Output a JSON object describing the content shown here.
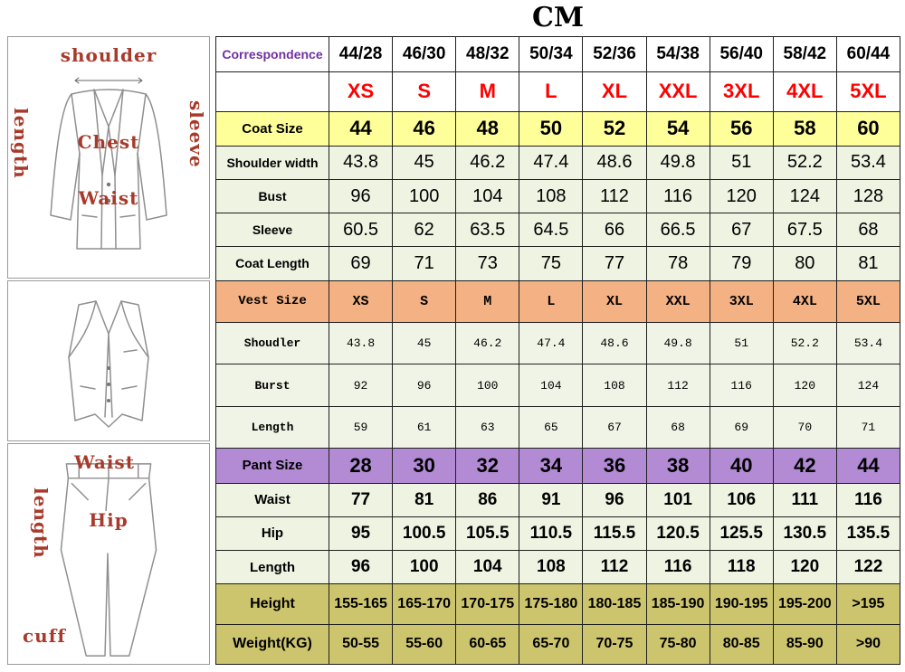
{
  "page_title": "CM",
  "colors": {
    "coat_size_row": "#ffff99",
    "vest_size_row": "#f4b183",
    "pant_size_row": "#b28bd4",
    "range_rows": "#cdc56e",
    "data_rows": "#eef3e2",
    "sizes_text": "#fe0000",
    "correspondence_text": "#7030a0",
    "sketch_label_text": "#a83a2b"
  },
  "diagrams": {
    "jacket": {
      "shoulder": "shoulder",
      "length": "length",
      "sleeve": "sleeve",
      "chest": "Chest",
      "waist": "Waist"
    },
    "pants": {
      "waist": "Waist",
      "length": "length",
      "hip": "Hip",
      "cuff": "cuff"
    }
  },
  "chart_data": {
    "type": "table",
    "title": "CM",
    "rows": [
      {
        "label": "Correspondence",
        "style": "header",
        "values": [
          "44/28",
          "46/30",
          "48/32",
          "50/34",
          "52/36",
          "54/38",
          "56/40",
          "58/42",
          "60/44"
        ]
      },
      {
        "label": "",
        "style": "sizes",
        "values": [
          "XS",
          "S",
          "M",
          "L",
          "XL",
          "XXL",
          "3XL",
          "4XL",
          "5XL"
        ]
      },
      {
        "label": "Coat Size",
        "style": "coatsize",
        "values": [
          "44",
          "46",
          "48",
          "50",
          "52",
          "54",
          "56",
          "58",
          "60"
        ]
      },
      {
        "label": "Shoulder width",
        "style": "coat",
        "values": [
          "43.8",
          "45",
          "46.2",
          "47.4",
          "48.6",
          "49.8",
          "51",
          "52.2",
          "53.4"
        ]
      },
      {
        "label": "Bust",
        "style": "coat",
        "values": [
          "96",
          "100",
          "104",
          "108",
          "112",
          "116",
          "120",
          "124",
          "128"
        ]
      },
      {
        "label": "Sleeve",
        "style": "coat",
        "values": [
          "60.5",
          "62",
          "63.5",
          "64.5",
          "66",
          "66.5",
          "67",
          "67.5",
          "68"
        ]
      },
      {
        "label": "Coat Length",
        "style": "coat",
        "values": [
          "69",
          "71",
          "73",
          "75",
          "77",
          "78",
          "79",
          "80",
          "81"
        ]
      },
      {
        "label": "Vest Size",
        "style": "vestsize",
        "values": [
          "XS",
          "S",
          "M",
          "L",
          "XL",
          "XXL",
          "3XL",
          "4XL",
          "5XL"
        ]
      },
      {
        "label": "Shoudler",
        "style": "vest",
        "values": [
          "43.8",
          "45",
          "46.2",
          "47.4",
          "48.6",
          "49.8",
          "51",
          "52.2",
          "53.4"
        ]
      },
      {
        "label": "Burst",
        "style": "vest",
        "values": [
          "92",
          "96",
          "100",
          "104",
          "108",
          "112",
          "116",
          "120",
          "124"
        ]
      },
      {
        "label": "Length",
        "style": "vest",
        "values": [
          "59",
          "61",
          "63",
          "65",
          "67",
          "68",
          "69",
          "70",
          "71"
        ]
      },
      {
        "label": "Pant Size",
        "style": "pantsize",
        "values": [
          "28",
          "30",
          "32",
          "34",
          "36",
          "38",
          "40",
          "42",
          "44"
        ]
      },
      {
        "label": "Waist",
        "style": "pant",
        "values": [
          "77",
          "81",
          "86",
          "91",
          "96",
          "101",
          "106",
          "111",
          "116"
        ]
      },
      {
        "label": "Hip",
        "style": "pant",
        "values": [
          "95",
          "100.5",
          "105.5",
          "110.5",
          "115.5",
          "120.5",
          "125.5",
          "130.5",
          "135.5"
        ]
      },
      {
        "label": "Length",
        "style": "pant",
        "values": [
          "96",
          "100",
          "104",
          "108",
          "112",
          "116",
          "118",
          "120",
          "122"
        ]
      },
      {
        "label": "Height",
        "style": "range",
        "values": [
          "155-165",
          "165-170",
          "170-175",
          "175-180",
          "180-185",
          "185-190",
          "190-195",
          "195-200",
          ">195"
        ]
      },
      {
        "label": "Weight(KG)",
        "style": "range",
        "values": [
          "50-55",
          "55-60",
          "60-65",
          "65-70",
          "70-75",
          "75-80",
          "80-85",
          "85-90",
          ">90"
        ]
      }
    ]
  }
}
